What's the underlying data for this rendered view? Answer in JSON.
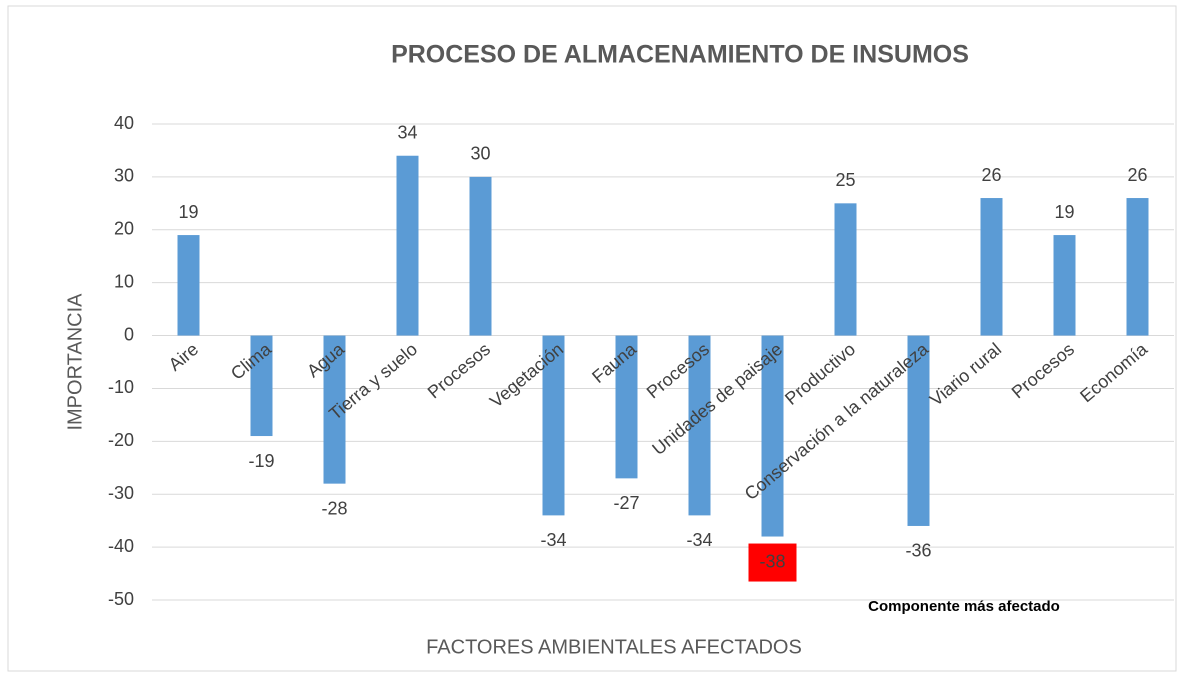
{
  "chart_data": {
    "type": "bar",
    "title": "PROCESO  DE ALMACENAMIENTO DE INSUMOS",
    "x_label": "FACTORES AMBIENTALES AFECTADOS",
    "y_label": "IMPORTANCIA",
    "categories": [
      "Aire",
      "Clima",
      "Agua",
      "Tierra y suelo",
      "Procesos",
      "Vegetación",
      "Fauna",
      "Procesos",
      "Unidades de paisaje",
      "Productivo",
      "Conservación a la naturaleza",
      "Viario rural",
      "Procesos",
      "Economía"
    ],
    "values": [
      19,
      -19,
      -28,
      34,
      30,
      -34,
      -27,
      -34,
      -38,
      25,
      -36,
      26,
      19,
      26
    ],
    "color": "#5b9bd5",
    "highlight_index": 8,
    "highlight_color": "#ff0000",
    "annotation": "Componente más afectado",
    "ylim": [
      -50,
      40
    ],
    "yticks": [
      -50,
      -40,
      -30,
      -20,
      -10,
      0,
      10,
      20,
      30,
      40
    ],
    "grid": true
  }
}
